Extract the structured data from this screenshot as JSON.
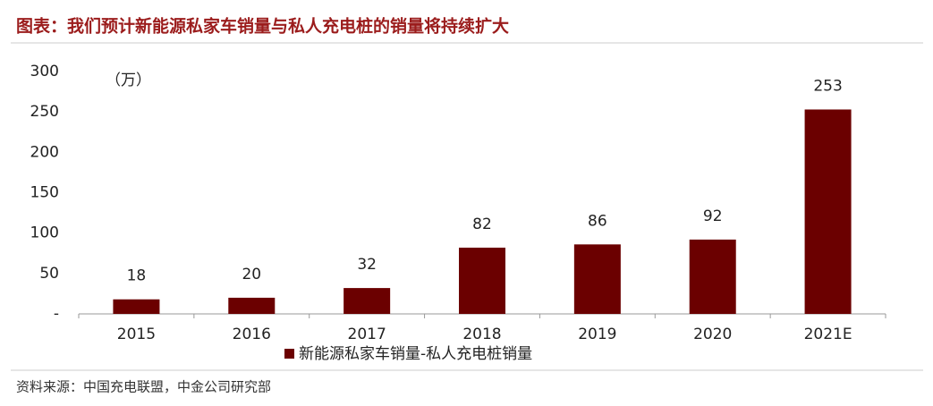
{
  "chart_data": {
    "type": "bar",
    "title": "图表：我们预计新能源私家车销量与私人充电桩的销量将持续扩大",
    "unit_label": "（万）",
    "source": "资料来源：中国充电联盟，中金公司研究部",
    "categories": [
      "2015",
      "2016",
      "2017",
      "2018",
      "2019",
      "2020",
      "2021E"
    ],
    "series": [
      {
        "name": "新能源私家车销量-私人充电桩销量",
        "color": "#6b0000",
        "values": [
          18,
          20,
          32,
          82,
          86,
          92,
          253
        ]
      }
    ],
    "ylim": [
      0,
      300
    ],
    "yticks": [
      {
        "value": 0,
        "label": "-"
      },
      50,
      100,
      150,
      200,
      250,
      300
    ],
    "grid": false
  }
}
